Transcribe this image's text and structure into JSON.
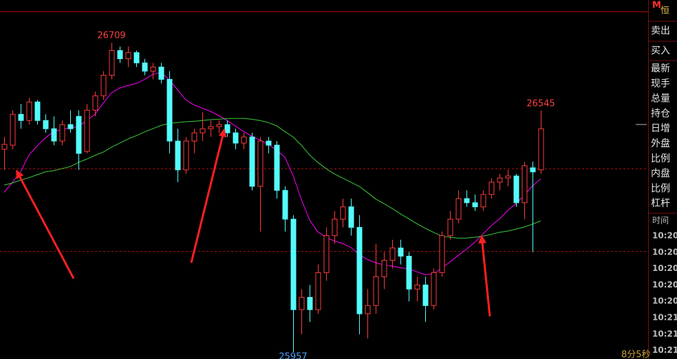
{
  "chart_data": {
    "type": "candlestick",
    "open": [
      26450,
      26460,
      26535,
      26520,
      26565,
      26520,
      26500,
      26470,
      26510,
      26530,
      26445,
      26545,
      26580,
      26630,
      26690,
      26670,
      26685,
      26660,
      26640,
      26650,
      26620,
      26470,
      26400,
      26470,
      26490,
      26500,
      26505,
      26510,
      26490,
      26465,
      26480,
      26360,
      26470,
      26460,
      26350,
      26280,
      26060,
      26090,
      26060,
      26150,
      26240,
      26280,
      26310,
      26260,
      26050,
      26070,
      26140,
      26180,
      26210,
      26190,
      26110,
      26120,
      26070,
      26150,
      26240,
      26280,
      26330,
      26320,
      26310,
      26340,
      26370,
      26380,
      26385,
      26320,
      26405,
      26400
    ],
    "high": [
      26480,
      26545,
      26560,
      26575,
      26570,
      26535,
      26530,
      26520,
      26545,
      26545,
      26560,
      26590,
      26640,
      26709,
      26700,
      26700,
      26690,
      26670,
      26660,
      26660,
      26640,
      26500,
      26480,
      26500,
      26540,
      26520,
      26520,
      26520,
      26500,
      26490,
      26490,
      26480,
      26480,
      26470,
      26360,
      26290,
      26110,
      26120,
      26170,
      26260,
      26300,
      26330,
      26330,
      26290,
      26110,
      26220,
      26200,
      26230,
      26230,
      26200,
      26140,
      26140,
      26160,
      26250,
      26300,
      26350,
      26350,
      26340,
      26350,
      26380,
      26390,
      26400,
      26390,
      26420,
      26420,
      26545
    ],
    "low": [
      26400,
      26450,
      26500,
      26510,
      26510,
      26490,
      26460,
      26460,
      26490,
      26400,
      26440,
      26530,
      26570,
      26620,
      26660,
      26650,
      26650,
      26630,
      26620,
      26610,
      26440,
      26370,
      26390,
      26440,
      26470,
      26480,
      26490,
      26480,
      26450,
      26450,
      26350,
      26250,
      26440,
      26330,
      26250,
      25957,
      26000,
      26030,
      26050,
      26130,
      26220,
      26260,
      26240,
      26000,
      25990,
      26050,
      26110,
      26160,
      26170,
      26080,
      26080,
      26030,
      26060,
      26140,
      26230,
      26270,
      26310,
      26300,
      26300,
      26330,
      26350,
      26360,
      26310,
      26280,
      26200,
      26390
    ],
    "close": [
      26462,
      26535,
      26520,
      26565,
      26520,
      26500,
      26470,
      26510,
      26500,
      26440,
      26545,
      26580,
      26630,
      26690,
      26670,
      26685,
      26660,
      26640,
      26650,
      26620,
      26470,
      26400,
      26470,
      26490,
      26500,
      26505,
      26510,
      26490,
      26465,
      26480,
      26360,
      26470,
      26460,
      26350,
      26280,
      26060,
      26090,
      26060,
      26150,
      26240,
      26280,
      26310,
      26260,
      26050,
      26070,
      26140,
      26180,
      26210,
      26190,
      26110,
      26120,
      26070,
      26150,
      26240,
      26280,
      26330,
      26320,
      26310,
      26340,
      26370,
      26380,
      26385,
      26320,
      26410,
      26395,
      26500
    ],
    "up_color": "#ff3c3c",
    "down_color": "#54fcfc",
    "series": [
      {
        "color": "#ff00ff",
        "values": [
          26345,
          26370,
          26395,
          26436,
          26458,
          26478,
          26493,
          26498,
          26502,
          26505,
          26520,
          26535,
          26562,
          26587,
          26599,
          26605,
          26610,
          26620,
          26632,
          26637,
          26619,
          26595,
          26570,
          26558,
          26550,
          26542,
          26532,
          26520,
          26507,
          26493,
          26482,
          26472,
          26462,
          26448,
          26431,
          26386,
          26328,
          26278,
          26249,
          26236,
          26227,
          26221,
          26211,
          26194,
          26182,
          26174,
          26169,
          26166,
          26162,
          26159,
          26152,
          26145,
          26147,
          26161,
          26176,
          26192,
          26207,
          26224,
          26244,
          26264,
          26281,
          26301,
          26318,
          26338,
          26361,
          26378
        ]
      },
      {
        "color": "#3ccd3c",
        "values": [
          26363,
          26368,
          26375,
          26381,
          26388,
          26395,
          26398,
          26403,
          26408,
          26418,
          26426,
          26435,
          26443,
          26455,
          26465,
          26475,
          26483,
          26492,
          26500,
          26508,
          26513,
          26515,
          26517,
          26518,
          26520,
          26522,
          26523,
          26525,
          26525,
          26525,
          26523,
          26520,
          26515,
          26507,
          26493,
          26480,
          26460,
          26436,
          26418,
          26403,
          26390,
          26380,
          26370,
          26360,
          26345,
          26329,
          26318,
          26306,
          26293,
          26281,
          26269,
          26258,
          26248,
          26239,
          26236,
          26234,
          26234,
          26236,
          26239,
          26243,
          26248,
          26251,
          26256,
          26261,
          26268,
          26276
        ]
      }
    ],
    "reference_lines": [
      26403,
      26202
    ],
    "ylim": [
      25940,
      26813
    ]
  },
  "side_panel": {
    "logo_mark": "M",
    "symbol": "恒",
    "sell": "卖出",
    "buy": "买入",
    "fields": [
      "最新",
      "现手",
      "总量",
      "持仓",
      "日增",
      "外盘",
      "比例",
      "内盘",
      "比例",
      "杠杆"
    ],
    "time_header": "时间",
    "times": [
      "10:20",
      "10:20",
      "10:20",
      "10:20",
      "10:20",
      "10:21",
      "10:21",
      "10:21"
    ]
  },
  "timer": "8分5秒"
}
